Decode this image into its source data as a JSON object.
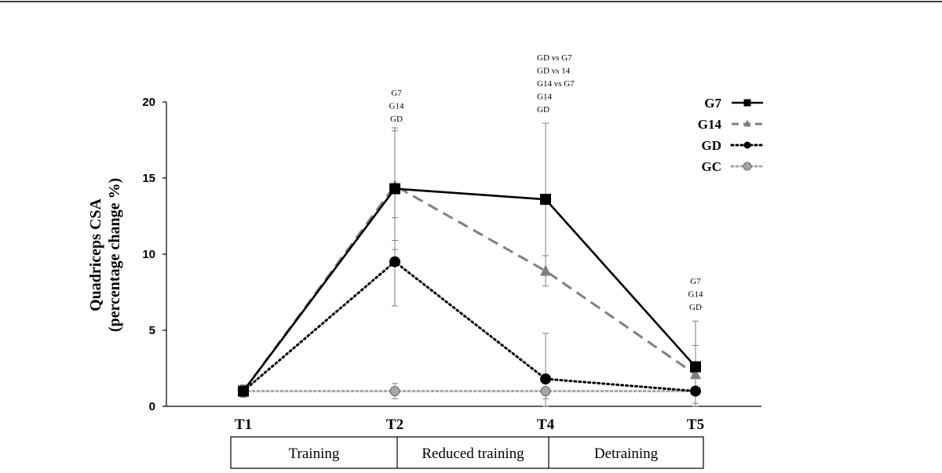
{
  "chart_data": {
    "type": "line",
    "ylabel_line1": "Quadriceps CSA",
    "ylabel_line2": "(percentage change %)",
    "categories": [
      "T1",
      "T2",
      "T4",
      "T5"
    ],
    "ylim": [
      0,
      20
    ],
    "yticks": [
      "0",
      "5",
      "10",
      "15",
      "20"
    ],
    "grid": false,
    "legend_position": "top-right",
    "series": [
      {
        "name": "G7",
        "color": "#000000",
        "style": "solid",
        "marker": "square",
        "values": [
          1,
          14.3,
          13.6,
          2.6
        ],
        "error": [
          0.4,
          4.0,
          5.0,
          3.0
        ]
      },
      {
        "name": "G14",
        "color": "#808080",
        "style": "dashed",
        "marker": "triangle",
        "values": [
          1,
          14.5,
          8.9,
          2.1
        ],
        "error": [
          0.4,
          3.6,
          1.0,
          1.9
        ]
      },
      {
        "name": "GD",
        "color": "#000000",
        "style": "dotted",
        "marker": "circle",
        "values": [
          1,
          9.5,
          1.8,
          1.0
        ],
        "error": [
          0.4,
          2.9,
          3.0,
          0.2
        ]
      },
      {
        "name": "GC",
        "color": "#a6a6a6",
        "style": "dotted",
        "marker": "circle",
        "values": [
          1,
          1.0,
          1.0,
          1.0
        ],
        "error": [
          0.2,
          0.5,
          0.5,
          0.2
        ]
      }
    ],
    "annotations": [
      {
        "category": "T2",
        "lines": [
          "G7",
          "G14",
          "GD"
        ]
      },
      {
        "category": "T4",
        "lines": [
          "GD vs G7",
          "GD vs 14",
          "G14 vs G7",
          "G14",
          "GD"
        ]
      },
      {
        "category": "T5",
        "lines": [
          "G7",
          "G14",
          "GD"
        ]
      }
    ],
    "phases": [
      "Training",
      "Reduced training",
      "Detraining"
    ]
  }
}
